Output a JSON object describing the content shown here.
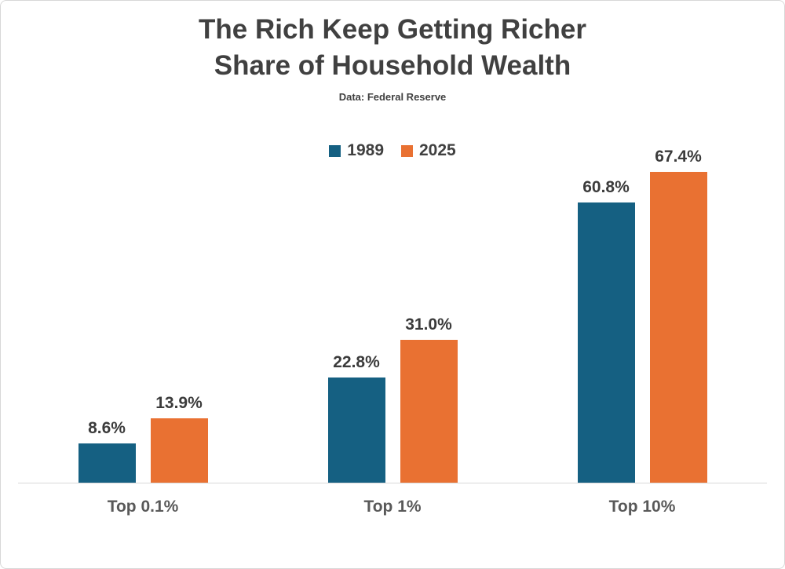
{
  "card": {
    "title_line1": "The Rich Keep Getting Richer",
    "title_line2": "Share of Household Wealth",
    "subtitle": "Data: Federal Reserve"
  },
  "chart_data": {
    "type": "bar",
    "title": "The Rich Keep Getting Richer",
    "subtitle_title": "Share of Household Wealth",
    "source_note": "Data: Federal Reserve",
    "categories": [
      "Top 0.1%",
      "Top 1%",
      "Top 10%"
    ],
    "series": [
      {
        "name": "1989",
        "color": "#156082",
        "values": [
          8.6,
          22.8,
          60.8
        ]
      },
      {
        "name": "2025",
        "color": "#E97132",
        "values": [
          13.9,
          31.0,
          67.4
        ]
      }
    ],
    "value_labels": [
      [
        "8.6%",
        "22.8%",
        "60.8%"
      ],
      [
        "13.9%",
        "31.0%",
        "67.4%"
      ]
    ],
    "ylabel": "",
    "xlabel": "",
    "ylim": [
      0,
      76
    ],
    "grid": false,
    "legend_position": "top-center",
    "axis_line_color": "#D9D9D9"
  },
  "colors": {
    "title_text": "#404040",
    "value_label_text": "#3B3B3B",
    "category_label_text": "#595959",
    "card_border": "#D8D8D8"
  }
}
